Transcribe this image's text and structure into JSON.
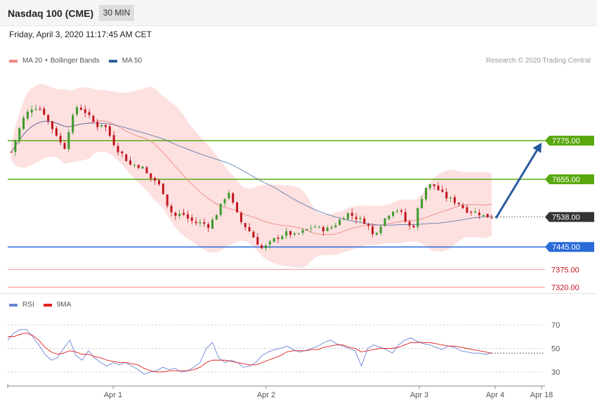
{
  "header": {
    "title": "Nasdaq 100 (CME)",
    "interval": "30 MIN"
  },
  "timestamp": "Friday, April 3, 2020 11:17:45 AM CET",
  "credit": "Research © 2020 Trading Central",
  "legend_top": [
    {
      "label": "MA 20 + Bollinger Bands",
      "color": "#f08a84"
    },
    {
      "label": "MA 50",
      "color": "#2f5f9e"
    }
  ],
  "legend_bottom": [
    {
      "label": "RSI",
      "color": "#6a85d6"
    },
    {
      "label": "9MA",
      "color": "#e02020"
    }
  ],
  "colors": {
    "resistance": "#5aa80f",
    "pivot": "#2a6bd8",
    "support": "#f2a0a0",
    "bull": "#3c9a2c",
    "bear": "#c0161e",
    "band_fill": "#fde0e0",
    "arrow": "#2a5a9e",
    "current": "#333333"
  },
  "chart_data": [
    {
      "type": "candlestick",
      "x_ticks": [
        "Apr 1",
        "Apr 2",
        "Apr 3",
        "Apr 4",
        "Apr 18"
      ],
      "levels": [
        {
          "value": 7775.0,
          "label": "7775.00",
          "kind": "resistance"
        },
        {
          "value": 7655.0,
          "label": "7655.00",
          "kind": "resistance"
        },
        {
          "value": 7538.0,
          "label": "7538.00",
          "kind": "current"
        },
        {
          "value": 7445.0,
          "label": "7445.00",
          "kind": "pivot"
        },
        {
          "value": 7375.0,
          "label": "7375.00",
          "kind": "support"
        },
        {
          "value": 7320.0,
          "label": "7320.00",
          "kind": "support"
        }
      ],
      "close_path": [
        7740,
        7800,
        7850,
        7875,
        7880,
        7860,
        7820,
        7790,
        7745,
        7830,
        7880,
        7870,
        7845,
        7820,
        7830,
        7790,
        7750,
        7730,
        7700,
        7700,
        7690,
        7660,
        7650,
        7620,
        7560,
        7540,
        7550,
        7530,
        7520,
        7520,
        7510,
        7540,
        7580,
        7620,
        7560,
        7520,
        7500,
        7470,
        7440,
        7450,
        7470,
        7480,
        7490,
        7480,
        7490,
        7500,
        7510,
        7500,
        7500,
        7510,
        7530,
        7550,
        7540,
        7530,
        7520,
        7480,
        7510,
        7540,
        7560,
        7560,
        7520,
        7500,
        7580,
        7630,
        7640,
        7620,
        7600,
        7590,
        7580,
        7560,
        7555,
        7550,
        7540,
        7538
      ],
      "arrow_target": 7775.0
    },
    {
      "type": "line",
      "name": "RSI",
      "y_ticks": [
        70,
        50,
        30
      ],
      "ylim": [
        20,
        80
      ],
      "rsi": [
        57,
        63,
        66,
        66,
        60,
        53,
        45,
        40,
        42,
        50,
        57,
        44,
        40,
        48,
        42,
        38,
        35,
        38,
        36,
        38,
        35,
        32,
        28,
        30,
        31,
        34,
        32,
        33,
        30,
        31,
        34,
        38,
        50,
        55,
        42,
        38,
        40,
        38,
        34,
        35,
        38,
        44,
        47,
        49,
        50,
        52,
        49,
        47,
        48,
        50,
        52,
        55,
        57,
        54,
        52,
        50,
        48,
        35,
        50,
        53,
        51,
        49,
        46,
        53,
        57,
        59,
        56,
        54,
        53,
        51,
        49,
        52,
        51,
        48,
        47,
        46,
        46,
        45,
        46
      ],
      "rsi_9ma": [
        60,
        60,
        62,
        63,
        61,
        57,
        51,
        47,
        45,
        46,
        48,
        47,
        45,
        45,
        43,
        42,
        40,
        39,
        38,
        38,
        37,
        36,
        33,
        31,
        30,
        30,
        31,
        31,
        31,
        31,
        32,
        34,
        38,
        40,
        40,
        40,
        39,
        38,
        37,
        36,
        36,
        38,
        40,
        42,
        44,
        47,
        48,
        48,
        48,
        49,
        49,
        51,
        52,
        53,
        53,
        51,
        50,
        47,
        48,
        49,
        50,
        50,
        50,
        51,
        53,
        55,
        55,
        55,
        55,
        54,
        53,
        52,
        52,
        51,
        50,
        49,
        48,
        47,
        46
      ]
    }
  ]
}
